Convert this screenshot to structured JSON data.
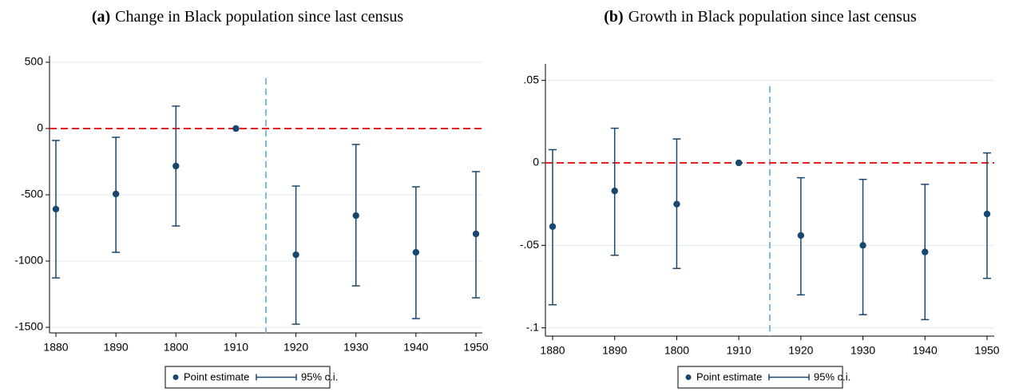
{
  "chart_data": [
    {
      "type": "errorbar",
      "panel_label": "(a)",
      "title": "Change in Black population since last census",
      "categories": [
        "1880",
        "1890",
        "1800",
        "1910",
        "1920",
        "1930",
        "1940",
        "1950"
      ],
      "series": [
        {
          "name": "Point estimate",
          "color": "#1a476f",
          "values": [
            -608,
            -494,
            -283,
            0,
            -952,
            -657,
            -934,
            -795
          ]
        },
        {
          "name": "95% c.i.",
          "color": "#1a476f",
          "low": [
            -1127,
            -934,
            -735,
            null,
            -1476,
            -1187,
            -1434,
            -1277
          ],
          "high": [
            -90,
            -66,
            169,
            null,
            -434,
            -120,
            -440,
            -325
          ]
        }
      ],
      "ylim": [
        -1542,
        548
      ],
      "yticks": [
        500,
        0,
        -500,
        -1000,
        -1500
      ],
      "reference_y": 0,
      "reference_color": "#e8201f",
      "break_color": "#80b9e0",
      "grid": true
    },
    {
      "type": "errorbar",
      "panel_label": "(b)",
      "title": "Growth in Black population since last census",
      "categories": [
        "1880",
        "1890",
        "1800",
        "1910",
        "1920",
        "1930",
        "1940",
        "1950"
      ],
      "series": [
        {
          "name": "Point estimate",
          "color": "#1a476f",
          "values": [
            -0.0386,
            -0.017,
            -0.025,
            0,
            -0.044,
            -0.05,
            -0.054,
            -0.031
          ]
        },
        {
          "name": "95% c.i.",
          "color": "#1a476f",
          "low": [
            -0.086,
            -0.056,
            -0.064,
            null,
            -0.08,
            -0.092,
            -0.095,
            -0.07
          ],
          "high": [
            0.008,
            0.021,
            0.0145,
            null,
            -0.009,
            -0.01,
            -0.013,
            0.006
          ]
        }
      ],
      "ylim": [
        -0.105,
        0.06
      ],
      "yticks": [
        {
          "value": 0.05,
          "label": ".05"
        },
        0,
        {
          "value": -0.05,
          "label": "-.05"
        },
        {
          "value": -0.1,
          "label": "-.1"
        }
      ],
      "reference_y": 0,
      "reference_color": "#e8201f",
      "break_color": "#80b9e0",
      "grid": true
    }
  ]
}
